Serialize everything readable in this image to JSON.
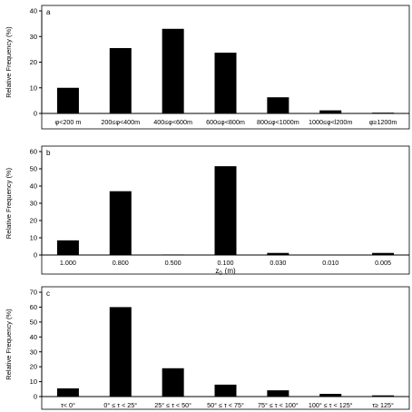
{
  "chart_data": [
    {
      "type": "bar",
      "panel_label": "a",
      "ylabel": "Relative Frequency (%)",
      "xlabel": "",
      "ylim": [
        0,
        40
      ],
      "yticks": [
        0,
        10,
        20,
        30,
        40
      ],
      "categories": [
        "φ<200 m",
        "200≤φ<400m",
        "400≤φ<600m",
        "600≤φ<800m",
        "800≤φ<1000m",
        "1000≤φ<l200m",
        "φ≥1200m"
      ],
      "values": [
        10,
        25.5,
        33,
        23.7,
        6.3,
        1.2,
        0.3
      ],
      "grid": false,
      "bar_color": "#000000"
    },
    {
      "type": "bar",
      "panel_label": "b",
      "ylabel": "Relative Frequency (%)",
      "xlabel": "z",
      "xlabel_sub": "0",
      "xlabel_unit": "(m)",
      "ylim": [
        0,
        60
      ],
      "yticks": [
        0,
        10,
        20,
        30,
        40,
        50,
        60
      ],
      "categories": [
        "1.000",
        "0.800",
        "0.500",
        "0.100",
        "0.030",
        "0.010",
        "0.005"
      ],
      "values": [
        8.5,
        37,
        0.3,
        51.5,
        1.2,
        0.2,
        1.2
      ],
      "grid": false,
      "bar_color": "#000000"
    },
    {
      "type": "bar",
      "panel_label": "c",
      "ylabel": "Relative Frequency (%)",
      "xlabel": "",
      "ylim": [
        0,
        70
      ],
      "yticks": [
        0,
        10,
        20,
        30,
        40,
        50,
        60,
        70
      ],
      "categories": [
        "τ< 0°",
        "0° ≤ τ < 25°",
        "25° ≤ τ < 50°",
        "50° ≤ τ < 75°",
        "75° ≤ τ < 100°",
        "100° ≤ τ < 125°",
        "τ≥ 125°"
      ],
      "values": [
        5.5,
        60,
        19,
        8,
        4.2,
        1.8,
        0.8
      ],
      "grid": false,
      "bar_color": "#000000"
    }
  ]
}
